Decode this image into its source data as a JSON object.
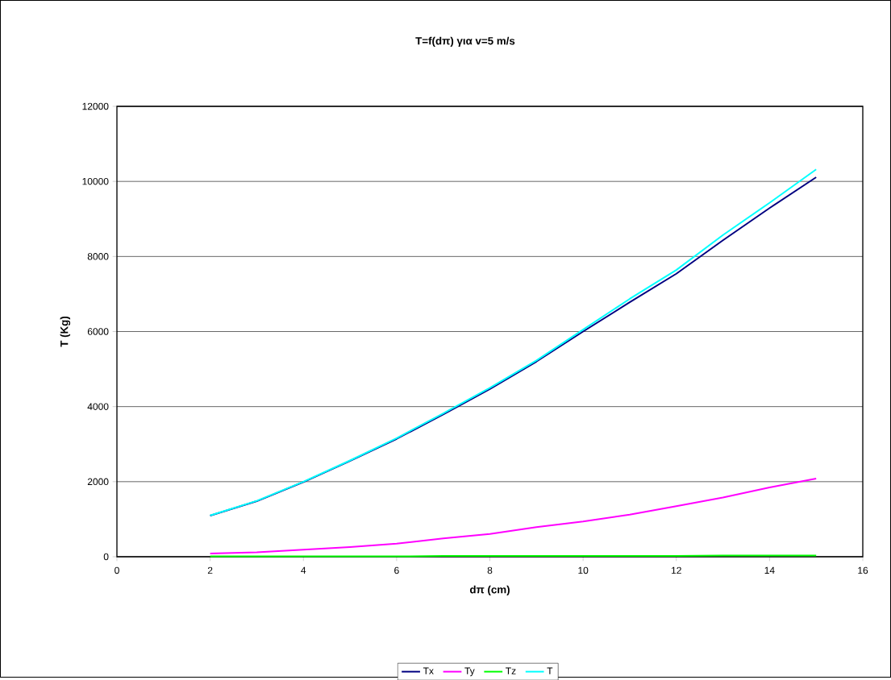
{
  "chart_data": {
    "type": "line",
    "title": "T=f(dπ) για v=5 m/s",
    "xlabel": "dπ (cm)",
    "ylabel": "T (Kg)",
    "x": [
      2,
      3,
      4,
      5,
      6,
      7,
      8,
      9,
      10,
      11,
      12,
      13,
      14,
      15
    ],
    "series": [
      {
        "name": "Tx",
        "color": "#000080",
        "values": [
          1095,
          1480,
          1990,
          2550,
          3140,
          3790,
          4470,
          5200,
          6000,
          6780,
          7540,
          8430,
          9290,
          10110
        ]
      },
      {
        "name": "Ty",
        "color": "#ff00ff",
        "values": [
          86,
          120,
          186,
          258,
          350,
          486,
          608,
          787,
          937,
          1123,
          1345,
          1580,
          1845,
          2080
        ]
      },
      {
        "name": "Tz",
        "color": "#00ff00",
        "values": [
          10,
          10,
          10,
          10,
          10,
          20,
          20,
          20,
          20,
          20,
          20,
          30,
          30,
          30
        ]
      },
      {
        "name": "T",
        "color": "#00ffff",
        "values": [
          1100,
          1490,
          2000,
          2566,
          3160,
          3820,
          4500,
          5230,
          6050,
          6870,
          7640,
          8570,
          9430,
          10320
        ]
      }
    ],
    "xlim": [
      0,
      16
    ],
    "xticks": [
      0,
      2,
      4,
      6,
      8,
      10,
      12,
      14,
      16
    ],
    "ylim": [
      0,
      12000
    ],
    "yticks": [
      0,
      2000,
      4000,
      6000,
      8000,
      10000,
      12000
    ],
    "grid": "y",
    "legend": "bottom",
    "marker": "none",
    "line_style": "solid"
  }
}
